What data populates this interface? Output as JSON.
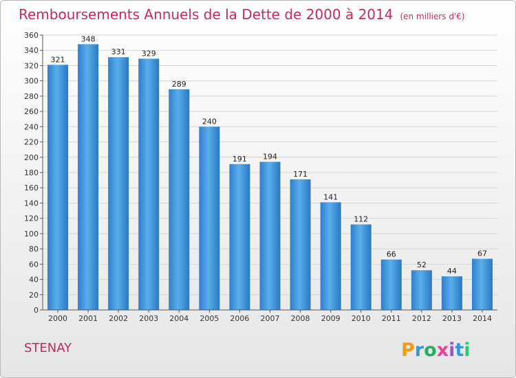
{
  "chart_data": {
    "type": "bar",
    "title": "Remboursements Annuels de la Dette de 2000 à 2014",
    "subtitle": "(en milliers d'€)",
    "categories": [
      "2000",
      "2001",
      "2002",
      "2003",
      "2004",
      "2005",
      "2006",
      "2007",
      "2008",
      "2009",
      "2010",
      "2011",
      "2012",
      "2013",
      "2014"
    ],
    "values": [
      321,
      348,
      331,
      329,
      289,
      240,
      191,
      194,
      171,
      141,
      112,
      66,
      52,
      44,
      67
    ],
    "ylim": [
      0,
      360
    ],
    "yticks": [
      0,
      20,
      40,
      60,
      80,
      100,
      120,
      140,
      160,
      180,
      200,
      220,
      240,
      260,
      280,
      300,
      320,
      340,
      360
    ],
    "grid": true,
    "bar_color": "#3d8fd6"
  },
  "place_name": "STENAY",
  "logo": {
    "letters": [
      "P",
      "r",
      "o",
      "x",
      "i",
      "t",
      "i"
    ],
    "colors": [
      "#f39c12",
      "#3498db",
      "#27ae60",
      "#e84393",
      "#9b59b6",
      "#3498db",
      "#2ecc71"
    ]
  }
}
